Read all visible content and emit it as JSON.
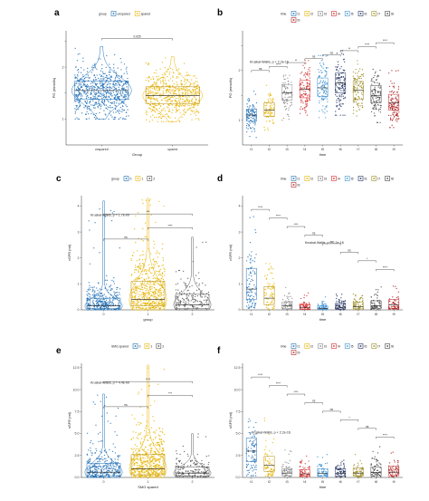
{
  "figure": {
    "panels": [
      {
        "id": "a",
        "label": "a"
      },
      {
        "id": "b",
        "label": "b"
      },
      {
        "id": "c",
        "label": "c"
      },
      {
        "id": "d",
        "label": "d"
      },
      {
        "id": "e",
        "label": "e"
      },
      {
        "id": "f",
        "label": "f"
      }
    ]
  },
  "chart_data": [
    {
      "panel": "a",
      "type": "scatter",
      "title": "",
      "legend_title": "group",
      "legend_position": "top",
      "legend": [
        "unspared",
        "spared"
      ],
      "categories": [
        "unspared",
        "spared"
      ],
      "colors": [
        "#1f6fb5",
        "#e8b400"
      ],
      "xlabel": "Group",
      "ylabel": "PG (mmol/s)",
      "ylim": [
        0.5,
        2.7
      ],
      "yticks": [
        1,
        1.5,
        2,
        2.5
      ],
      "ytick_labels": [
        "1",
        "",
        "2",
        ""
      ],
      "series": [
        {
          "name": "unspared",
          "median": 1.55,
          "q1": 1.38,
          "q3": 1.73,
          "min": 1.0,
          "max": 2.4,
          "n": 700,
          "violin": true
        },
        {
          "name": "spared",
          "median": 1.45,
          "q1": 1.3,
          "q3": 1.62,
          "min": 0.95,
          "max": 2.2,
          "n": 600,
          "violin": true
        }
      ],
      "annotations": [
        {
          "between": [
            0,
            1
          ],
          "text": "0.025"
        }
      ],
      "grid": false
    },
    {
      "panel": "b",
      "type": "scatter",
      "title": "",
      "legend_title": "time",
      "legend_position": "top",
      "legend": [
        "t1",
        "t2",
        "t3",
        "t4",
        "t5",
        "t6",
        "t7",
        "t8",
        "t9"
      ],
      "categories": [
        "t1",
        "t2",
        "t3",
        "t4",
        "t5",
        "t6",
        "t7",
        "t8",
        "t9"
      ],
      "colors": [
        "#1f6fb5",
        "#e8b400",
        "#8a8a8a",
        "#d42a2a",
        "#3a8fd0",
        "#203060",
        "#9a8a20",
        "#444444",
        "#b02020"
      ],
      "xlabel": "time",
      "ylabel": "PG (mmol/s)",
      "ylim": [
        0.5,
        2.8
      ],
      "yticks": [
        1,
        1.5,
        2,
        2.5
      ],
      "ytick_labels": [
        "1",
        "",
        "2",
        ""
      ],
      "series": [
        {
          "name": "t1",
          "median": 1.1,
          "q1": 0.98,
          "q3": 1.22,
          "min": 0.65,
          "max": 1.6,
          "n": 110,
          "violin": false
        },
        {
          "name": "t2",
          "median": 1.2,
          "q1": 1.08,
          "q3": 1.35,
          "min": 0.8,
          "max": 1.7,
          "n": 80,
          "violin": false
        },
        {
          "name": "t3",
          "median": 1.55,
          "q1": 1.4,
          "q3": 1.72,
          "min": 1.0,
          "max": 2.1,
          "n": 80,
          "violin": false
        },
        {
          "name": "t4",
          "median": 1.62,
          "q1": 1.45,
          "q3": 1.8,
          "min": 1.1,
          "max": 2.2,
          "n": 110,
          "violin": false
        },
        {
          "name": "t5",
          "median": 1.65,
          "q1": 1.48,
          "q3": 1.85,
          "min": 1.05,
          "max": 2.3,
          "n": 110,
          "violin": false
        },
        {
          "name": "t6",
          "median": 1.75,
          "q1": 1.55,
          "q3": 1.95,
          "min": 1.1,
          "max": 2.4,
          "n": 130,
          "violin": false
        },
        {
          "name": "t7",
          "median": 1.6,
          "q1": 1.42,
          "q3": 1.78,
          "min": 1.0,
          "max": 2.3,
          "n": 110,
          "violin": false
        },
        {
          "name": "t8",
          "median": 1.5,
          "q1": 1.35,
          "q3": 1.7,
          "min": 0.95,
          "max": 2.3,
          "n": 110,
          "violin": false
        },
        {
          "name": "t9",
          "median": 1.35,
          "q1": 1.2,
          "q3": 1.52,
          "min": 0.85,
          "max": 2.0,
          "n": 120,
          "violin": false
        }
      ],
      "stat_label": "Kruskal-Wallis, p < 2.2e-16",
      "annotations": [
        {
          "between": [
            0,
            1
          ],
          "text": "ns"
        },
        {
          "between": [
            1,
            2
          ],
          "text": "****"
        },
        {
          "between": [
            2,
            3
          ],
          "text": "**"
        },
        {
          "between": [
            3,
            4
          ],
          "text": "ns"
        },
        {
          "between": [
            4,
            5
          ],
          "text": "ns"
        },
        {
          "between": [
            5,
            6
          ],
          "text": "**"
        },
        {
          "between": [
            6,
            7
          ],
          "text": "****"
        },
        {
          "between": [
            7,
            8
          ],
          "text": "****"
        }
      ],
      "grid": false
    },
    {
      "panel": "c",
      "type": "scatter",
      "title": "",
      "legend_title": "group",
      "legend_position": "top",
      "legend": [
        "0",
        "1",
        "2"
      ],
      "categories": [
        "0",
        "1",
        "2"
      ],
      "colors": [
        "#1f6fb5",
        "#e8b400",
        "#555555"
      ],
      "xlabel": "group",
      "ylabel": "cSFR (ml)",
      "ylim": [
        0,
        4.4
      ],
      "yticks": [
        0,
        1,
        2,
        3,
        4
      ],
      "ytick_labels": [
        "0",
        "1",
        "2",
        "3",
        "4"
      ],
      "series": [
        {
          "name": "0",
          "median": 0.15,
          "q1": 0.05,
          "q3": 0.45,
          "min": 0.0,
          "max": 4.2,
          "n": 320,
          "violin": true
        },
        {
          "name": "1",
          "median": 0.4,
          "q1": 0.15,
          "q3": 1.1,
          "min": 0.0,
          "max": 4.3,
          "n": 560,
          "violin": true
        },
        {
          "name": "2",
          "median": 0.2,
          "q1": 0.05,
          "q3": 0.6,
          "min": 0.0,
          "max": 2.8,
          "n": 160,
          "violin": true
        }
      ],
      "stat_label": "Kruskal-Wallis, p = 1.7e-09",
      "annotations": [
        {
          "between": [
            0,
            1
          ],
          "text": "ns"
        },
        {
          "between": [
            1,
            2
          ],
          "text": "****"
        },
        {
          "between": [
            0,
            2
          ],
          "text": "***"
        }
      ],
      "grid": false
    },
    {
      "panel": "d",
      "type": "scatter",
      "title": "",
      "legend_title": "time",
      "legend_position": "top",
      "legend": [
        "t1",
        "t2",
        "t3",
        "t4",
        "t5",
        "t6",
        "t7",
        "t8",
        "t9"
      ],
      "categories": [
        "t1",
        "t2",
        "t3",
        "t4",
        "t5",
        "t6",
        "t7",
        "t8",
        "t9"
      ],
      "colors": [
        "#1f6fb5",
        "#e8b400",
        "#8a8a8a",
        "#d42a2a",
        "#3a8fd0",
        "#203060",
        "#9a8a20",
        "#444444",
        "#b02020"
      ],
      "xlabel": "time",
      "ylabel": "cSFR (ml)",
      "ylim": [
        0,
        4.4
      ],
      "yticks": [
        0,
        1,
        2,
        3,
        4
      ],
      "ytick_labels": [
        "0",
        "1",
        "2",
        "3",
        "4"
      ],
      "series": [
        {
          "name": "t1",
          "median": 0.8,
          "q1": 0.4,
          "q3": 1.6,
          "min": 0.05,
          "max": 4.0,
          "n": 90,
          "violin": false
        },
        {
          "name": "t2",
          "median": 0.45,
          "q1": 0.2,
          "q3": 0.9,
          "min": 0.0,
          "max": 2.7,
          "n": 70,
          "violin": false
        },
        {
          "name": "t3",
          "median": 0.15,
          "q1": 0.05,
          "q3": 0.3,
          "min": 0.0,
          "max": 1.0,
          "n": 60,
          "violin": false
        },
        {
          "name": "t4",
          "median": 0.08,
          "q1": 0.02,
          "q3": 0.2,
          "min": 0.0,
          "max": 0.7,
          "n": 60,
          "violin": false
        },
        {
          "name": "t5",
          "median": 0.06,
          "q1": 0.02,
          "q3": 0.15,
          "min": 0.0,
          "max": 0.5,
          "n": 60,
          "violin": false
        },
        {
          "name": "t6",
          "median": 0.1,
          "q1": 0.03,
          "q3": 0.25,
          "min": 0.0,
          "max": 0.6,
          "n": 60,
          "violin": false
        },
        {
          "name": "t7",
          "median": 0.12,
          "q1": 0.04,
          "q3": 0.3,
          "min": 0.0,
          "max": 0.8,
          "n": 60,
          "violin": false
        },
        {
          "name": "t8",
          "median": 0.15,
          "q1": 0.05,
          "q3": 0.35,
          "min": 0.0,
          "max": 0.9,
          "n": 60,
          "violin": false
        },
        {
          "name": "t9",
          "median": 0.2,
          "q1": 0.06,
          "q3": 0.4,
          "min": 0.0,
          "max": 1.0,
          "n": 60,
          "violin": false
        }
      ],
      "stat_label": "Kruskal-Wallis, p < 2.2e-16",
      "annotations": [
        {
          "between": [
            0,
            1
          ],
          "text": "****"
        },
        {
          "between": [
            1,
            2
          ],
          "text": "****"
        },
        {
          "between": [
            2,
            3
          ],
          "text": "****"
        },
        {
          "between": [
            3,
            4
          ],
          "text": "ns"
        },
        {
          "between": [
            4,
            5
          ],
          "text": "ns"
        },
        {
          "between": [
            5,
            6
          ],
          "text": "ns"
        },
        {
          "between": [
            6,
            7
          ],
          "text": "*"
        },
        {
          "between": [
            7,
            8
          ],
          "text": "****"
        }
      ],
      "grid": false
    },
    {
      "panel": "e",
      "type": "scatter",
      "title": "",
      "legend_title": "SMG spared",
      "legend_position": "top",
      "legend": [
        "0",
        "1",
        "2"
      ],
      "categories": [
        "0",
        "1",
        "2"
      ],
      "colors": [
        "#1f6fb5",
        "#e8b400",
        "#555555"
      ],
      "xlabel": "SMG spared",
      "ylabel": "sSFR (ml)",
      "ylim": [
        0,
        13
      ],
      "yticks": [
        0,
        2.5,
        5,
        7.5,
        10,
        12.5
      ],
      "ytick_labels": [
        "0.0",
        "2.5",
        "5.0",
        "7.5",
        "10.0",
        "12.5"
      ],
      "series": [
        {
          "name": "0",
          "median": 0.6,
          "q1": 0.2,
          "q3": 1.6,
          "min": 0.0,
          "max": 9.5,
          "n": 320,
          "violin": true
        },
        {
          "name": "1",
          "median": 1.0,
          "q1": 0.3,
          "q3": 2.6,
          "min": 0.0,
          "max": 12.8,
          "n": 560,
          "violin": true
        },
        {
          "name": "2",
          "median": 0.5,
          "q1": 0.15,
          "q3": 1.2,
          "min": 0.0,
          "max": 5.0,
          "n": 160,
          "violin": true
        }
      ],
      "stat_label": "Kruskal-Wallis, p = 4.4e-09",
      "annotations": [
        {
          "between": [
            0,
            1
          ],
          "text": "ns"
        },
        {
          "between": [
            1,
            2
          ],
          "text": "***"
        },
        {
          "between": [
            0,
            2
          ],
          "text": "****"
        }
      ],
      "grid": false
    },
    {
      "panel": "f",
      "type": "scatter",
      "title": "",
      "legend_title": "time",
      "legend_position": "top",
      "legend": [
        "t1",
        "t2",
        "t3",
        "t4",
        "t5",
        "t6",
        "t7",
        "t8",
        "t9"
      ],
      "categories": [
        "t1",
        "t2",
        "t3",
        "t4",
        "t5",
        "t6",
        "t7",
        "t8",
        "t9"
      ],
      "colors": [
        "#1f6fb5",
        "#e8b400",
        "#8a8a8a",
        "#d42a2a",
        "#3a8fd0",
        "#203060",
        "#9a8a20",
        "#444444",
        "#b02020"
      ],
      "xlabel": "time",
      "ylabel": "sSFR (ml)",
      "ylim": [
        0,
        13
      ],
      "yticks": [
        0,
        2.5,
        5,
        7.5,
        10,
        12.5
      ],
      "ytick_labels": [
        "0.0",
        "2.5",
        "5.0",
        "7.5",
        "10.0",
        "12.5"
      ],
      "series": [
        {
          "name": "t1",
          "median": 3.0,
          "q1": 1.8,
          "q3": 4.5,
          "min": 0.2,
          "max": 12.0,
          "n": 90,
          "violin": false
        },
        {
          "name": "t2",
          "median": 1.4,
          "q1": 0.7,
          "q3": 2.4,
          "min": 0.0,
          "max": 7.0,
          "n": 70,
          "violin": false
        },
        {
          "name": "t3",
          "median": 0.5,
          "q1": 0.2,
          "q3": 1.0,
          "min": 0.0,
          "max": 3.5,
          "n": 60,
          "violin": false
        },
        {
          "name": "t4",
          "median": 0.4,
          "q1": 0.15,
          "q3": 0.9,
          "min": 0.0,
          "max": 2.5,
          "n": 60,
          "violin": false
        },
        {
          "name": "t5",
          "median": 0.45,
          "q1": 0.15,
          "q3": 1.0,
          "min": 0.0,
          "max": 3.0,
          "n": 60,
          "violin": false
        },
        {
          "name": "t6",
          "median": 0.45,
          "q1": 0.15,
          "q3": 1.0,
          "min": 0.0,
          "max": 2.5,
          "n": 60,
          "violin": false
        },
        {
          "name": "t7",
          "median": 0.5,
          "q1": 0.2,
          "q3": 1.1,
          "min": 0.0,
          "max": 3.0,
          "n": 60,
          "violin": false
        },
        {
          "name": "t8",
          "median": 0.55,
          "q1": 0.2,
          "q3": 1.2,
          "min": 0.0,
          "max": 3.5,
          "n": 60,
          "violin": false
        },
        {
          "name": "t9",
          "median": 0.6,
          "q1": 0.2,
          "q3": 1.3,
          "min": 0.0,
          "max": 3.5,
          "n": 60,
          "violin": false
        }
      ],
      "stat_label": "Kruskal-Wallis, p < 2.2e-16",
      "annotations": [
        {
          "between": [
            0,
            1
          ],
          "text": "****"
        },
        {
          "between": [
            1,
            2
          ],
          "text": "****"
        },
        {
          "between": [
            2,
            3
          ],
          "text": "****"
        },
        {
          "between": [
            3,
            4
          ],
          "text": "ns"
        },
        {
          "between": [
            4,
            5
          ],
          "text": "ns"
        },
        {
          "between": [
            5,
            6
          ],
          "text": "*"
        },
        {
          "between": [
            6,
            7
          ],
          "text": "ns"
        },
        {
          "between": [
            7,
            8
          ],
          "text": "****"
        }
      ],
      "grid": false
    }
  ]
}
